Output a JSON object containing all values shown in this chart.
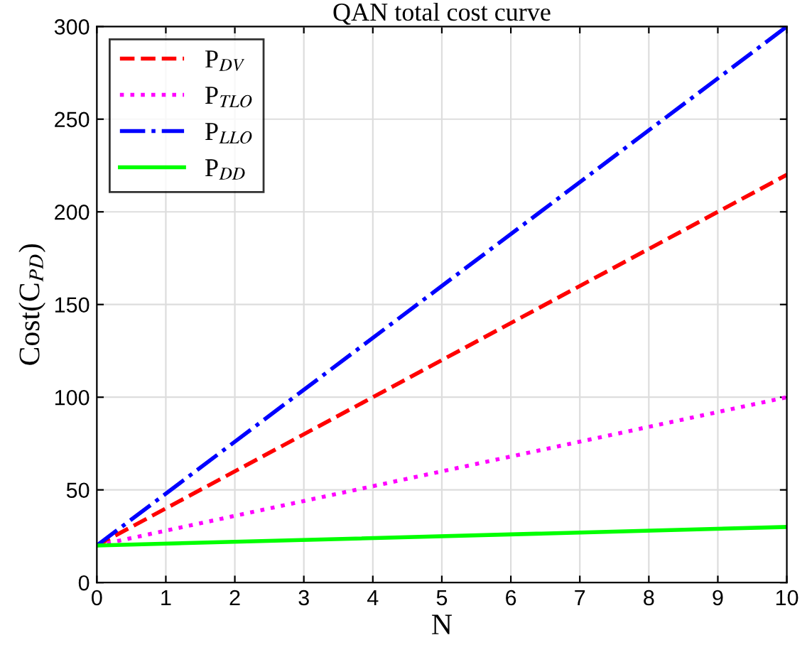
{
  "chart_data": {
    "type": "line",
    "title": "QAN total cost curve",
    "xlabel": "N",
    "ylabel": "Cost(C$_{PD}$)",
    "x": [
      0,
      10
    ],
    "series": [
      {
        "name": "P$_{DV}$",
        "color": "#ff0000",
        "line_style": "dashed",
        "values": [
          20,
          220
        ]
      },
      {
        "name": "P$_{TLO}$",
        "color": "#ff00ff",
        "line_style": "dotted",
        "values": [
          20,
          100
        ]
      },
      {
        "name": "P$_{LLO}$",
        "color": "#0000ff",
        "line_style": "dashdot",
        "values": [
          20,
          300
        ]
      },
      {
        "name": "P$_{DD}$",
        "color": "#00ff00",
        "line_style": "solid",
        "values": [
          20,
          30
        ]
      }
    ],
    "xlim": [
      0,
      10
    ],
    "xticks": [
      0,
      1,
      2,
      3,
      4,
      5,
      6,
      7,
      8,
      9,
      10
    ],
    "ylim": [
      0,
      300
    ],
    "yticks": [
      0,
      50,
      100,
      150,
      200,
      250,
      300
    ],
    "grid": true,
    "legend": "top left"
  }
}
